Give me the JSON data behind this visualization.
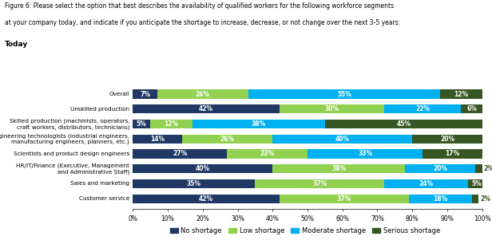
{
  "title_line1": "Figure 6: Please select the option that best describes the availability of qualified workers for the following workforce segments",
  "title_line2": "at your company today, and indicate if you anticipate the shortage to increase, decrease, or not change over the next 3-5 years:",
  "subtitle": "Today",
  "categories": [
    "Overall",
    "Unskilled production",
    "Skilled production (machinists, operators,\ncraft workers, distributors, technicians)",
    "Engineering technologists (industrial engineers,\nmanufacturing engineers, planners, etc.)",
    "Scientists and product design engineers",
    "HR/IT/Finance (Executive, Management\nand Administrative Staff)",
    "Sales and marketing",
    "Customer service"
  ],
  "no_shortage": [
    7,
    42,
    5,
    14,
    27,
    40,
    35,
    42
  ],
  "low_shortage": [
    26,
    30,
    12,
    26,
    23,
    38,
    37,
    37
  ],
  "moderate_shortage": [
    55,
    22,
    38,
    40,
    33,
    20,
    24,
    18
  ],
  "serious_shortage": [
    12,
    6,
    45,
    20,
    17,
    2,
    5,
    2
  ],
  "colors": {
    "no_shortage": "#1f3864",
    "low_shortage": "#92d050",
    "moderate_shortage": "#00b0f0",
    "serious_shortage": "#375623"
  },
  "legend_labels": [
    "No shortage",
    "Low shortage",
    "Moderate shortage",
    "Serious shortage"
  ],
  "figsize": [
    6.16,
    3.01
  ],
  "dpi": 100
}
